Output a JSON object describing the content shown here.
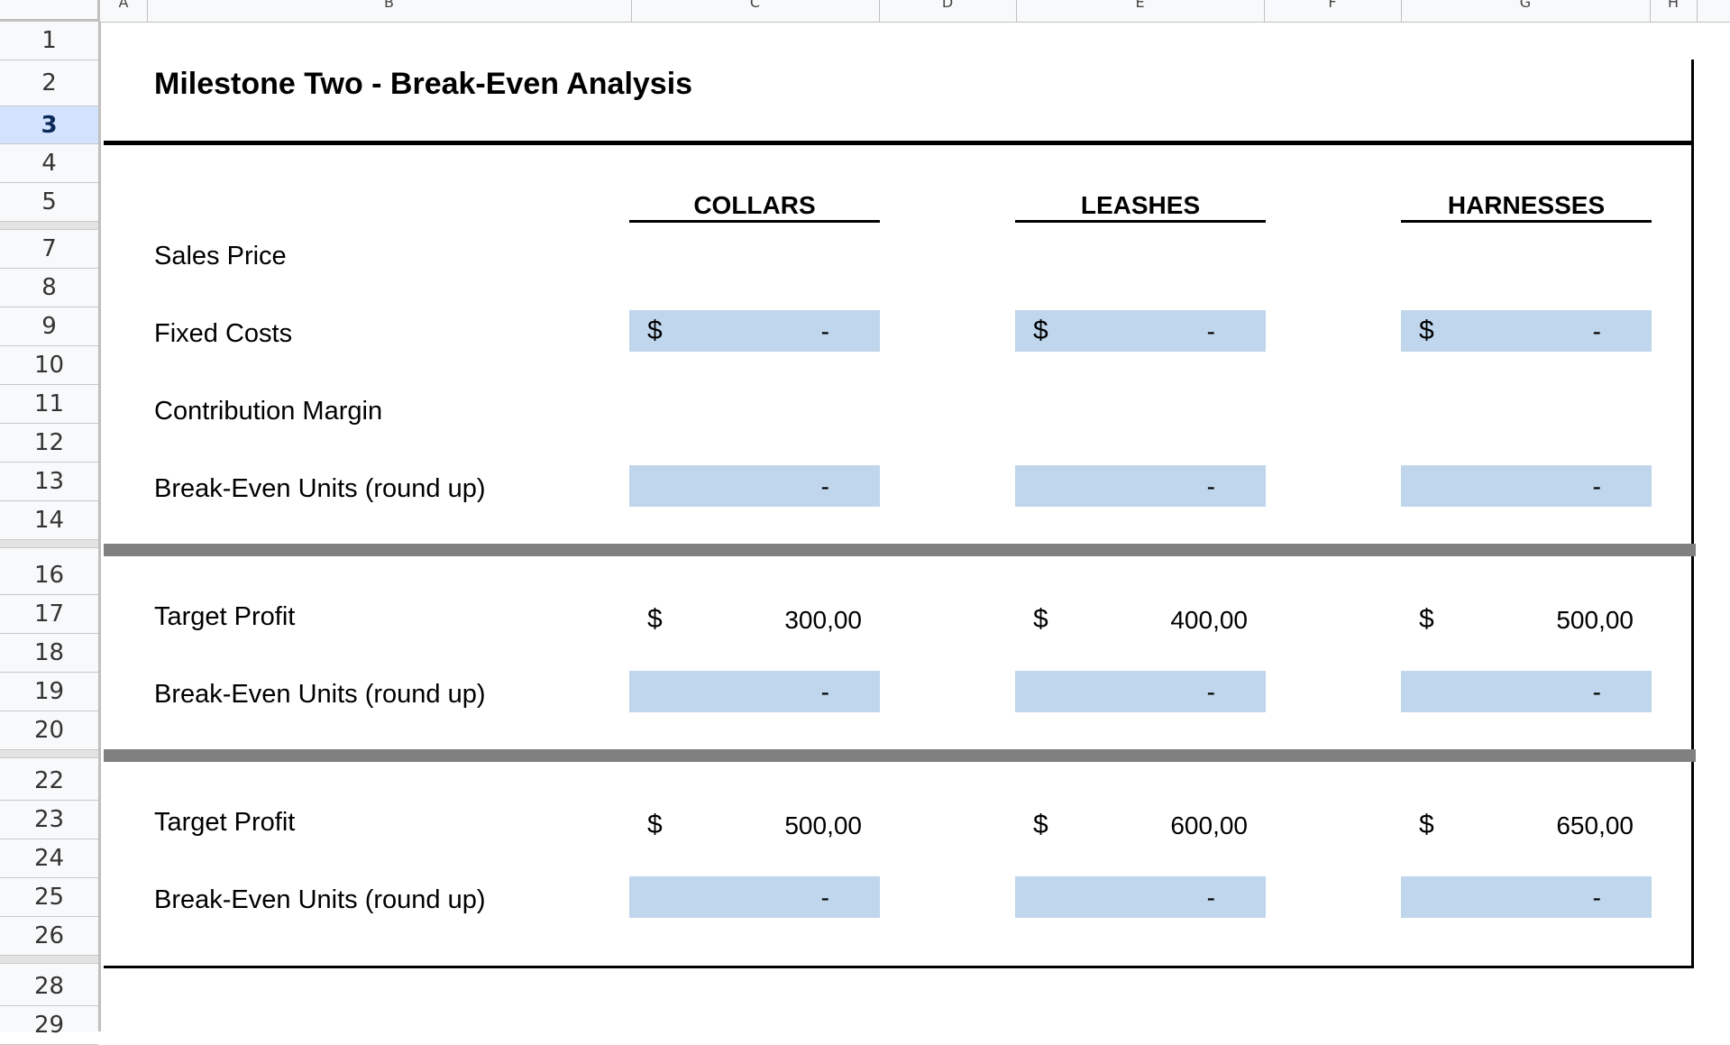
{
  "column_headers": [
    "A",
    "B",
    "C",
    "D",
    "E",
    "F",
    "G",
    "H"
  ],
  "row_headers": [
    "1",
    "2",
    "3",
    "4",
    "5",
    "7",
    "8",
    "9",
    "10",
    "11",
    "12",
    "13",
    "14",
    "16",
    "17",
    "18",
    "19",
    "20",
    "22",
    "23",
    "24",
    "25",
    "26",
    "28",
    "29"
  ],
  "selected_row": "3",
  "sheet": {
    "title": "Milestone Two - Break-Even Analysis",
    "products": [
      "COLLARS",
      "LEASHES",
      "HARNESSES"
    ],
    "rows": {
      "sales_price": "Sales Price",
      "fixed_costs": "Fixed Costs",
      "contribution_margin": "Contribution Margin",
      "break_even_units": "Break-Even Units (round up)"
    },
    "currency_symbol": "$",
    "empty_value": "-",
    "fixed_costs_values": [
      "-",
      "-",
      "-"
    ],
    "break_even_values": [
      "-",
      "-",
      "-"
    ],
    "section2": {
      "target_profit_label": "Target Profit",
      "target_profit_values": [
        "300,00",
        "400,00",
        "500,00"
      ],
      "break_even_label": "Break-Even Units (round up)",
      "break_even_values": [
        "-",
        "-",
        "-"
      ]
    },
    "section3": {
      "target_profit_label": "Target Profit",
      "target_profit_values": [
        "500,00",
        "600,00",
        "650,00"
      ],
      "break_even_label": "Break-Even Units (round up)",
      "break_even_values": [
        "-",
        "-",
        "-"
      ]
    }
  },
  "colors": {
    "input_fill": "#bfd6ec",
    "section_band": "#808080",
    "selected_row_header": "#d3e3fd"
  }
}
